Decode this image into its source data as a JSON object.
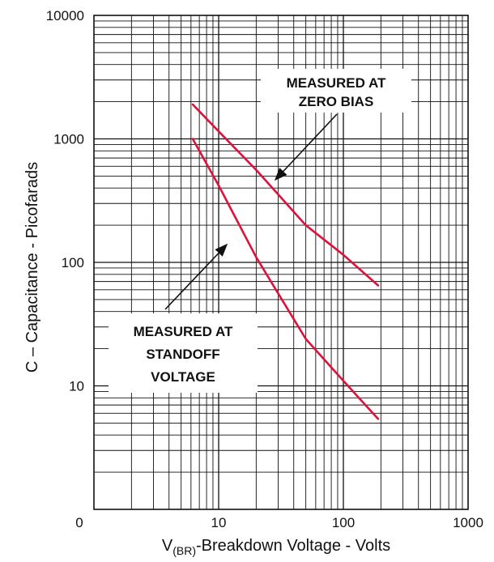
{
  "chart_data": {
    "type": "line",
    "x_scale": "log",
    "y_scale": "log",
    "xlim": [
      1,
      1000
    ],
    "ylim": [
      1,
      10000
    ],
    "grid": true,
    "ylabel": "C – Capacitance - Picofarads",
    "xlabel_sub": "(BR)",
    "xlabel": "-Breakdown Voltage - Volts",
    "xlabel_prefix": "V",
    "x_ticks": [
      {
        "value": 1,
        "label": "0"
      },
      {
        "value": 10,
        "label": "10"
      },
      {
        "value": 100,
        "label": "100"
      },
      {
        "value": 1000,
        "label": "1000"
      }
    ],
    "y_ticks": [
      {
        "value": 10,
        "label": "10"
      },
      {
        "value": 100,
        "label": "100"
      },
      {
        "value": 1000,
        "label": "1000"
      },
      {
        "value": 10000,
        "label": "10000"
      }
    ],
    "series": [
      {
        "color": "#e0103a",
        "points": [
          [
            6.2,
            1900
          ],
          [
            10,
            1150
          ],
          [
            20,
            560
          ],
          [
            50,
            200
          ],
          [
            100,
            115
          ],
          [
            190,
            65
          ]
        ]
      },
      {
        "color": "#e0103a",
        "points": [
          [
            6.2,
            1000
          ],
          [
            10,
            420
          ],
          [
            20,
            110
          ],
          [
            50,
            24
          ],
          [
            100,
            11
          ],
          [
            190,
            5.4
          ]
        ]
      }
    ],
    "annotations": [
      {
        "lines": [
          "MEASURED AT",
          "ZERO BIAS"
        ]
      },
      {
        "lines": [
          "MEASURED AT",
          "STANDOFF",
          "VOLTAGE"
        ]
      }
    ]
  }
}
